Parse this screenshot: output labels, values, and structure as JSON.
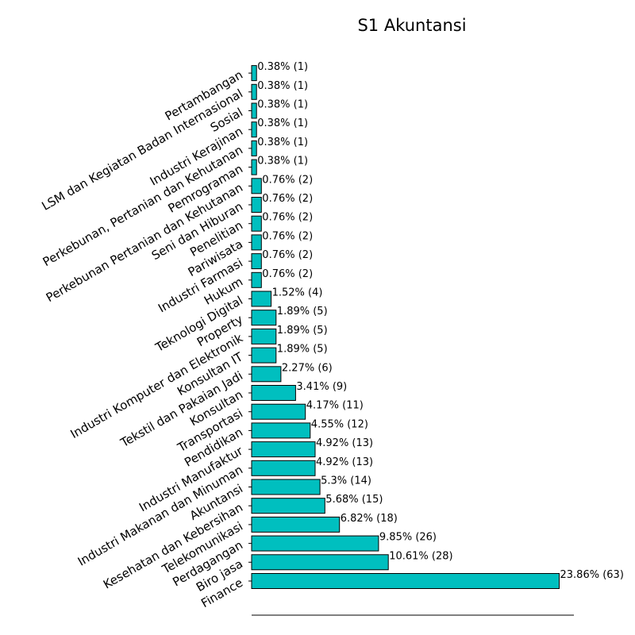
{
  "chart_data": {
    "type": "bar",
    "orientation": "horizontal",
    "title": "S1 Akuntansi",
    "xlabel": "",
    "ylabel": "",
    "bar_color": "#00bfbf",
    "edge_color": "#000000",
    "grid": false,
    "categories": [
      "Finance",
      "Biro jasa",
      "Perdagangan",
      "Telekomunikasi",
      "Kesehatan dan Kebersihan",
      "Akuntansi",
      "Industri Makanan dan Minuman",
      "Industri Manufaktur",
      "Pendidikan",
      "Transportasi",
      "Konsultan",
      "Tekstil dan Pakaian Jadi",
      "Konsultan IT",
      "Industri Komputer dan Elektronik",
      "Property",
      "Teknologi Digital",
      "Hukum",
      "Industri Farmasi",
      "Pariwisata",
      "Penelitian",
      "Seni dan Hiburan",
      "Perkebunan Pertanian dan Kehutanan",
      "Pemrograman",
      "Perkebunan, Pertanian dan Kehutanan",
      "Industri Kerajinan",
      "Sosial",
      "LSM dan Kegiatan Badan Internasional",
      "Pertambangan"
    ],
    "values": [
      63,
      28,
      26,
      18,
      15,
      14,
      13,
      13,
      12,
      11,
      9,
      6,
      5,
      5,
      5,
      4,
      2,
      2,
      2,
      2,
      2,
      2,
      1,
      1,
      1,
      1,
      1,
      1
    ],
    "data_labels": [
      "23.86% (63)",
      "10.61% (28)",
      "9.85% (26)",
      "6.82% (18)",
      "5.68% (15)",
      "5.3% (14)",
      "4.92% (13)",
      "4.92% (13)",
      "4.55% (12)",
      "4.17% (11)",
      "3.41% (9)",
      "2.27% (6)",
      "1.89% (5)",
      "1.89% (5)",
      "1.89% (5)",
      "1.52% (4)",
      "0.76% (2)",
      "0.76% (2)",
      "0.76% (2)",
      "0.76% (2)",
      "0.76% (2)",
      "0.76% (2)",
      "0.38% (1)",
      "0.38% (1)",
      "0.38% (1)",
      "0.38% (1)",
      "0.38% (1)",
      "0.38% (1)"
    ],
    "xlim": [
      0,
      66
    ]
  }
}
